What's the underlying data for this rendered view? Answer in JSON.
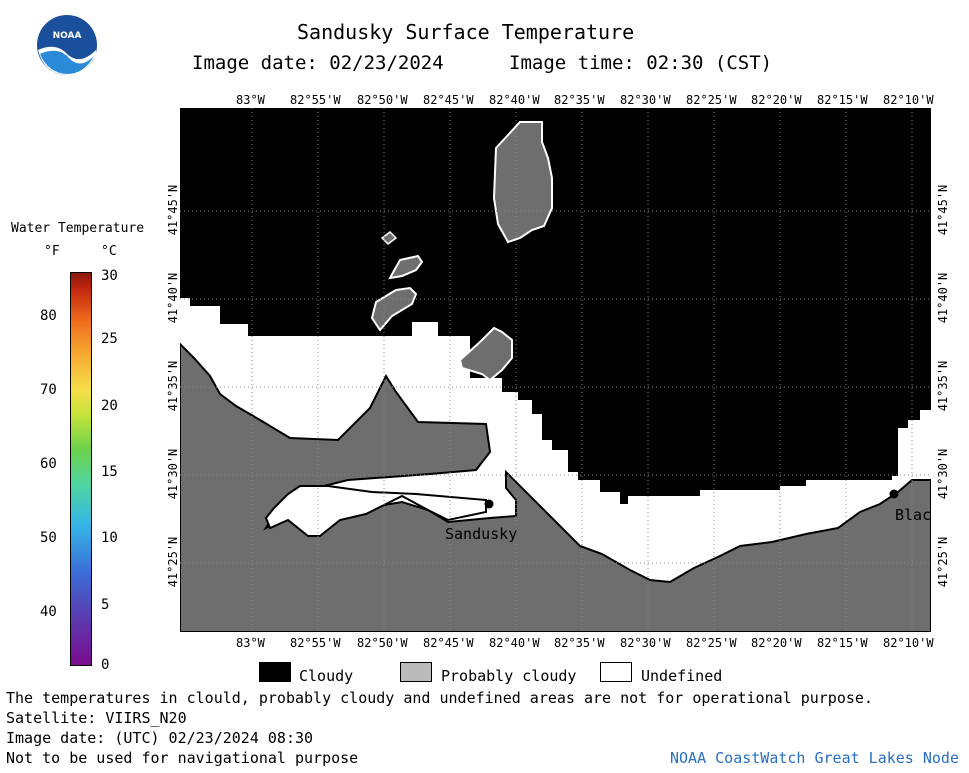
{
  "title": "Sandusky Surface Temperature",
  "image_date_label": "Image date: 02/23/2024",
  "image_time_label": "Image time: 02:30 (CST)",
  "logo_text": "NOAA",
  "lon_ticks": [
    "83°W",
    "82°55'W",
    "82°50'W",
    "82°45'W",
    "82°40'W",
    "82°35'W",
    "82°30'W",
    "82°25'W",
    "82°20'W",
    "82°15'W",
    "82°10'W"
  ],
  "lat_ticks": [
    "41°45'N",
    "41°40'N",
    "41°35'N",
    "41°30'N",
    "41°25'N"
  ],
  "places": {
    "sandusky": "Sandusky",
    "blac": "Blac"
  },
  "legend": {
    "title": "Water Temperature",
    "f_unit": "°F",
    "c_unit": "°C",
    "f_ticks": [
      "80",
      "70",
      "60",
      "50",
      "40"
    ],
    "c_ticks": [
      "30",
      "25",
      "20",
      "15",
      "10",
      "5",
      "0"
    ],
    "colors": {
      "cloudy": "#000000",
      "probably_cloudy": "#bbbbbb",
      "undefined": "#ffffff",
      "land": "#6e6e6e"
    }
  },
  "key": {
    "cloudy": "Cloudy",
    "probably_cloudy": "Probably cloudy",
    "undefined": "Undefined"
  },
  "disclaimer": "The temperatures in clould, probably cloudy and undefined areas are not for operational purpose.",
  "satellite": "Satellite: VIIRS_N20",
  "utc_date": "Image date: (UTC) 02/23/2024  08:30",
  "nav_warning": "Not to be used for navigational purpose",
  "credit": "NOAA CoastWatch Great Lakes Node"
}
